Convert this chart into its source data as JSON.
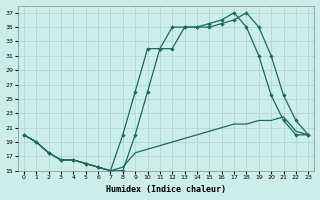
{
  "xlabel": "Humidex (Indice chaleur)",
  "background_color": "#cceee8",
  "grid_color": "#aad4ce",
  "line_color": "#1a6b5a",
  "xlim": [
    -0.5,
    23.5
  ],
  "ylim": [
    15,
    38
  ],
  "xtick_labels": [
    "0",
    "1",
    "2",
    "3",
    "4",
    "5",
    "6",
    "7",
    "8",
    "9",
    "10",
    "11",
    "12",
    "13",
    "14",
    "15",
    "16",
    "17",
    "18",
    "19",
    "20",
    "21",
    "22",
    "23"
  ],
  "ytick_vals": [
    15,
    17,
    19,
    21,
    23,
    25,
    27,
    29,
    31,
    33,
    35,
    37
  ],
  "lineA_x": [
    0,
    1,
    2,
    3,
    4,
    5,
    6,
    7,
    8,
    9,
    10,
    11,
    12,
    13,
    14,
    15,
    16,
    17,
    18,
    19,
    20,
    21,
    22,
    23
  ],
  "lineA_y": [
    20,
    19,
    17.5,
    16.5,
    16.5,
    16,
    15.5,
    15,
    15,
    20,
    26,
    32,
    32,
    35,
    35,
    35,
    35.5,
    36,
    37,
    35,
    31,
    25.5,
    22,
    20
  ],
  "lineB_x": [
    0,
    1,
    2,
    3,
    4,
    5,
    6,
    7,
    8,
    9,
    10,
    11,
    12,
    13,
    14,
    15,
    16,
    17,
    18,
    19,
    20,
    21,
    22,
    23
  ],
  "lineB_y": [
    20,
    19,
    17.5,
    16.5,
    16.5,
    16,
    15.5,
    15,
    15.5,
    17.5,
    18,
    18.5,
    19,
    19.5,
    20,
    20.5,
    21,
    21.5,
    21.5,
    22,
    22,
    22.5,
    20.5,
    20
  ],
  "lineC_x": [
    0,
    1,
    2,
    3,
    4,
    5,
    6,
    7,
    8,
    9,
    10,
    11,
    12,
    13,
    14,
    15,
    16,
    17,
    18,
    19,
    20,
    21,
    22,
    23
  ],
  "lineC_y": [
    20,
    19,
    17.5,
    16.5,
    16.5,
    16,
    15.5,
    15,
    20,
    26,
    32,
    32,
    35,
    35,
    35,
    35.5,
    36,
    37,
    35,
    31,
    25.5,
    22,
    20,
    20
  ]
}
